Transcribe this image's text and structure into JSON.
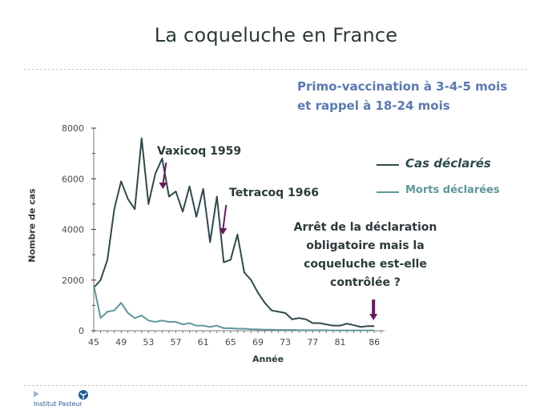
{
  "slide": {
    "title": "La coqueluche en France",
    "vaccination_line1": "Primo-vaccination à 3-4-5 mois",
    "vaccination_line2": "et rappel à 18-24 mois",
    "note_line1": "Arrêt de la déclaration",
    "note_line2": "obligatoire mais la",
    "note_line3": "coqueluche est-elle",
    "note_line4": "contrôlée ?",
    "footer": "Institut Pasteur"
  },
  "colors": {
    "cases": "#2e4a4c",
    "deaths": "#5f9699",
    "arrow": "#6a1a5c",
    "vaccination_text": "#5a79b3"
  },
  "chart_data": {
    "type": "line",
    "xlabel": "Année",
    "ylabel": "Nombre de cas",
    "ylim": [
      0,
      8000
    ],
    "yticks": [
      0,
      2000,
      4000,
      6000,
      8000
    ],
    "xticks": [
      "45",
      "49",
      "53",
      "57",
      "61",
      "65",
      "69",
      "73",
      "77",
      "81",
      "86"
    ],
    "xlim": [
      1945,
      1986
    ],
    "legend": {
      "cases": "Cas déclarés",
      "deaths": "Morts déclarées"
    },
    "series": [
      {
        "name": "Cas déclarés",
        "x": [
          1945,
          1946,
          1947,
          1948,
          1949,
          1950,
          1951,
          1952,
          1953,
          1954,
          1955,
          1956,
          1957,
          1958,
          1959,
          1960,
          1961,
          1962,
          1963,
          1964,
          1965,
          1966,
          1967,
          1968,
          1969,
          1970,
          1971,
          1972,
          1973,
          1974,
          1975,
          1976,
          1977,
          1978,
          1979,
          1980,
          1981,
          1982,
          1983,
          1984,
          1985,
          1986
        ],
        "values": [
          1700,
          2000,
          2800,
          4800,
          5900,
          5200,
          4800,
          7600,
          5000,
          6200,
          6800,
          5300,
          5500,
          4700,
          5700,
          4500,
          5600,
          3500,
          5300,
          2700,
          2800,
          3800,
          2300,
          2000,
          1500,
          1100,
          800,
          750,
          700,
          450,
          500,
          450,
          300,
          300,
          250,
          200,
          200,
          280,
          220,
          150,
          180,
          180
        ]
      },
      {
        "name": "Morts déclarées",
        "x": [
          1945,
          1946,
          1947,
          1948,
          1949,
          1950,
          1951,
          1952,
          1953,
          1954,
          1955,
          1956,
          1957,
          1958,
          1959,
          1960,
          1961,
          1962,
          1963,
          1964,
          1965,
          1966,
          1967,
          1968,
          1969,
          1970,
          1971,
          1972,
          1973,
          1974,
          1975,
          1976,
          1977,
          1978,
          1979,
          1980,
          1981,
          1982,
          1983,
          1984,
          1985,
          1986
        ],
        "values": [
          1800,
          500,
          750,
          800,
          1100,
          700,
          500,
          600,
          400,
          350,
          400,
          350,
          350,
          250,
          300,
          200,
          200,
          150,
          200,
          100,
          100,
          80,
          80,
          60,
          50,
          40,
          40,
          30,
          30,
          30,
          20,
          20,
          20,
          20,
          20,
          10,
          10,
          10,
          10,
          10,
          10,
          10
        ]
      }
    ],
    "annotations": [
      {
        "label": "Vaxicoq 1959",
        "x": 1955,
        "y": 5700
      },
      {
        "label": "Tetracoq 1966",
        "x": 1964,
        "y": 3900
      },
      {
        "label": "",
        "x": 1986,
        "y": 200
      }
    ]
  }
}
